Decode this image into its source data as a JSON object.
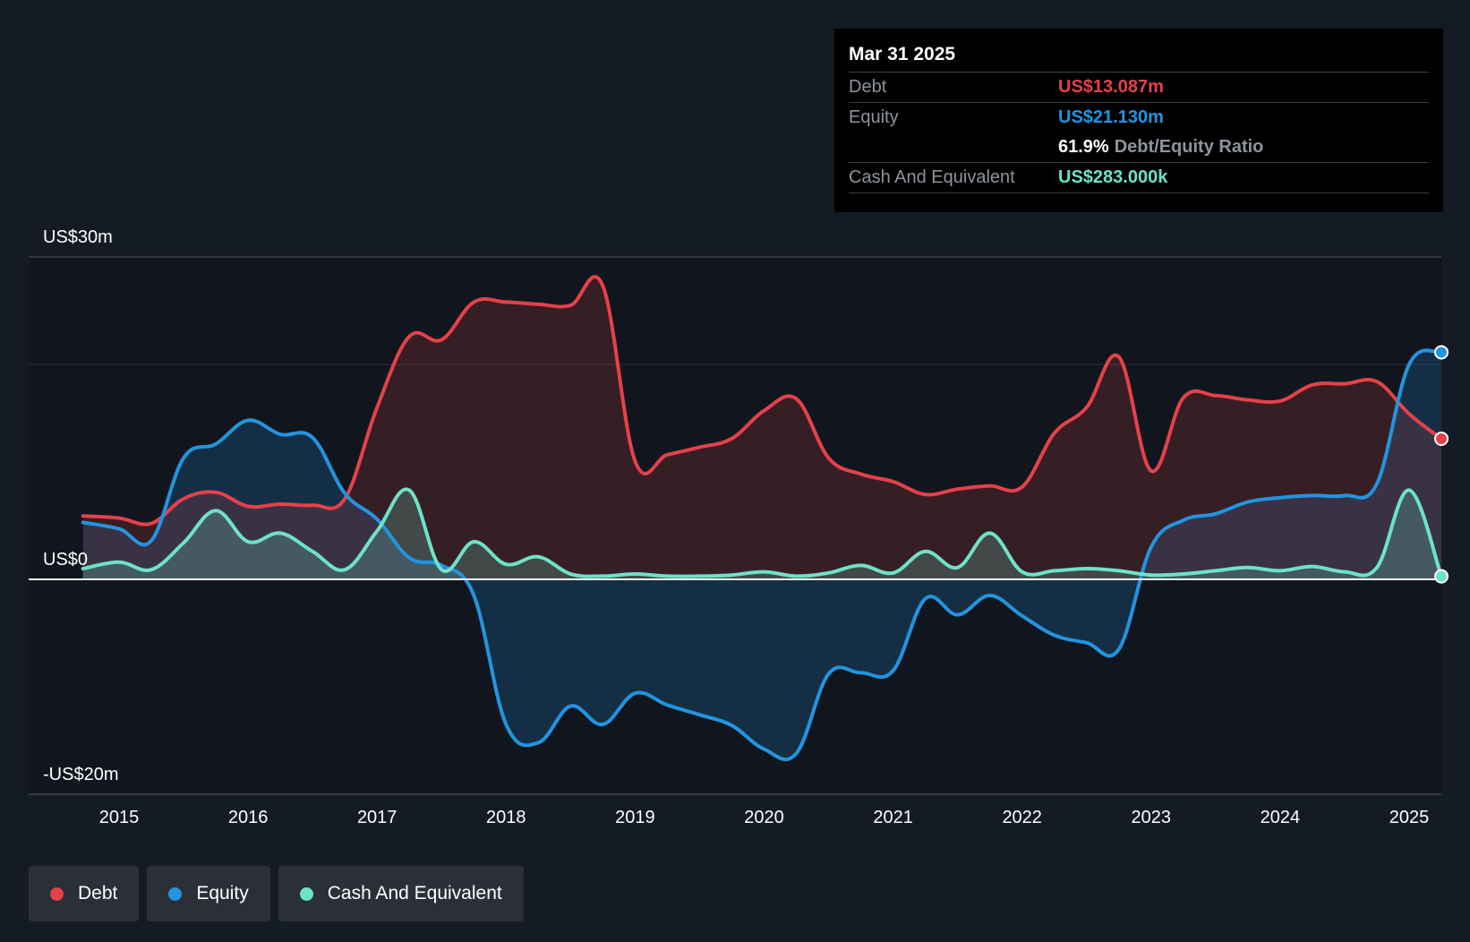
{
  "tooltip": {
    "date": "Mar 31 2025",
    "debt_label": "Debt",
    "debt_value": "US$13.087m",
    "equity_label": "Equity",
    "equity_value": "US$21.130m",
    "ratio_value": "61.9%",
    "ratio_label": "Debt/Equity Ratio",
    "cash_label": "Cash And Equivalent",
    "cash_value": "US$283.000k"
  },
  "legend": {
    "debt": "Debt",
    "equity": "Equity",
    "cash": "Cash And Equivalent"
  },
  "colors": {
    "background": "#151b24",
    "debt": "#e5414a",
    "equity": "#2394df",
    "cash": "#6ee2c9"
  },
  "chart_data": {
    "type": "area",
    "y_labels": [
      "US$30m",
      "US$0",
      "-US$20m"
    ],
    "x_tick_labels": [
      "2015",
      "2016",
      "2017",
      "2018",
      "2019",
      "2020",
      "2021",
      "2022",
      "2023",
      "2024",
      "2025"
    ],
    "x_ticks": [
      2015,
      2016,
      2017,
      2018,
      2019,
      2020,
      2021,
      2022,
      2023,
      2024,
      2025
    ],
    "xlim": [
      2014.72,
      2025.25
    ],
    "ylim": [
      -20,
      30
    ],
    "grid_y": [
      0,
      20,
      30
    ],
    "series": [
      {
        "name": "Debt",
        "color": "#e5414a",
        "points": [
          [
            2014.72,
            5.9
          ],
          [
            2015.0,
            5.7
          ],
          [
            2015.25,
            5.2
          ],
          [
            2015.5,
            7.5
          ],
          [
            2015.75,
            8.1
          ],
          [
            2016.0,
            6.8
          ],
          [
            2016.25,
            7.0
          ],
          [
            2016.5,
            6.9
          ],
          [
            2016.75,
            7.5
          ],
          [
            2017.0,
            16.0
          ],
          [
            2017.25,
            22.6
          ],
          [
            2017.5,
            22.3
          ],
          [
            2017.75,
            25.8
          ],
          [
            2018.0,
            25.8
          ],
          [
            2018.25,
            25.6
          ],
          [
            2018.5,
            25.5
          ],
          [
            2018.75,
            27.3
          ],
          [
            2019.0,
            11.0
          ],
          [
            2019.25,
            11.6
          ],
          [
            2019.5,
            12.3
          ],
          [
            2019.75,
            13.1
          ],
          [
            2020.0,
            15.7
          ],
          [
            2020.25,
            16.8
          ],
          [
            2020.5,
            11.3
          ],
          [
            2020.75,
            9.8
          ],
          [
            2021.0,
            9.1
          ],
          [
            2021.25,
            7.9
          ],
          [
            2021.5,
            8.4
          ],
          [
            2021.75,
            8.7
          ],
          [
            2022.0,
            8.6
          ],
          [
            2022.25,
            13.6
          ],
          [
            2022.5,
            16.0
          ],
          [
            2022.75,
            20.7
          ],
          [
            2023.0,
            10.1
          ],
          [
            2023.25,
            16.9
          ],
          [
            2023.5,
            17.1
          ],
          [
            2023.75,
            16.7
          ],
          [
            2024.0,
            16.6
          ],
          [
            2024.25,
            18.1
          ],
          [
            2024.5,
            18.2
          ],
          [
            2024.75,
            18.4
          ],
          [
            2025.0,
            15.4
          ],
          [
            2025.25,
            13.087
          ]
        ]
      },
      {
        "name": "Equity",
        "color": "#2394df",
        "points": [
          [
            2014.72,
            5.3
          ],
          [
            2015.0,
            4.7
          ],
          [
            2015.25,
            3.6
          ],
          [
            2015.5,
            11.3
          ],
          [
            2015.75,
            12.6
          ],
          [
            2016.0,
            14.8
          ],
          [
            2016.25,
            13.5
          ],
          [
            2016.5,
            13.2
          ],
          [
            2016.75,
            8.0
          ],
          [
            2017.0,
            5.6
          ],
          [
            2017.25,
            2.0
          ],
          [
            2017.5,
            1.3
          ],
          [
            2017.75,
            -1.5
          ],
          [
            2018.0,
            -13.5
          ],
          [
            2018.25,
            -15.2
          ],
          [
            2018.5,
            -11.8
          ],
          [
            2018.75,
            -13.5
          ],
          [
            2019.0,
            -10.6
          ],
          [
            2019.25,
            -11.7
          ],
          [
            2019.5,
            -12.6
          ],
          [
            2019.75,
            -13.6
          ],
          [
            2020.0,
            -15.8
          ],
          [
            2020.25,
            -16.2
          ],
          [
            2020.5,
            -8.8
          ],
          [
            2020.75,
            -8.7
          ],
          [
            2021.0,
            -8.5
          ],
          [
            2021.25,
            -1.8
          ],
          [
            2021.5,
            -3.3
          ],
          [
            2021.75,
            -1.5
          ],
          [
            2022.0,
            -3.4
          ],
          [
            2022.25,
            -5.2
          ],
          [
            2022.5,
            -5.9
          ],
          [
            2022.75,
            -6.5
          ],
          [
            2023.0,
            3.0
          ],
          [
            2023.25,
            5.5
          ],
          [
            2023.5,
            6.1
          ],
          [
            2023.75,
            7.2
          ],
          [
            2024.0,
            7.6
          ],
          [
            2024.25,
            7.8
          ],
          [
            2024.5,
            7.8
          ],
          [
            2024.75,
            8.9
          ],
          [
            2025.0,
            20.0
          ],
          [
            2025.25,
            21.13
          ]
        ]
      },
      {
        "name": "Cash And Equivalent",
        "color": "#6ee2c9",
        "points": [
          [
            2014.72,
            1.0
          ],
          [
            2015.0,
            1.6
          ],
          [
            2015.25,
            0.9
          ],
          [
            2015.5,
            3.4
          ],
          [
            2015.75,
            6.4
          ],
          [
            2016.0,
            3.5
          ],
          [
            2016.25,
            4.3
          ],
          [
            2016.5,
            2.6
          ],
          [
            2016.75,
            0.9
          ],
          [
            2017.0,
            4.5
          ],
          [
            2017.25,
            8.3
          ],
          [
            2017.5,
            0.9
          ],
          [
            2017.75,
            3.5
          ],
          [
            2018.0,
            1.4
          ],
          [
            2018.25,
            2.1
          ],
          [
            2018.5,
            0.5
          ],
          [
            2018.75,
            0.3
          ],
          [
            2019.0,
            0.5
          ],
          [
            2019.25,
            0.3
          ],
          [
            2019.5,
            0.3
          ],
          [
            2019.75,
            0.4
          ],
          [
            2020.0,
            0.7
          ],
          [
            2020.25,
            0.3
          ],
          [
            2020.5,
            0.6
          ],
          [
            2020.75,
            1.3
          ],
          [
            2021.0,
            0.6
          ],
          [
            2021.25,
            2.6
          ],
          [
            2021.5,
            1.1
          ],
          [
            2021.75,
            4.3
          ],
          [
            2022.0,
            0.7
          ],
          [
            2022.25,
            0.8
          ],
          [
            2022.5,
            1.0
          ],
          [
            2022.75,
            0.8
          ],
          [
            2023.0,
            0.4
          ],
          [
            2023.25,
            0.5
          ],
          [
            2023.5,
            0.8
          ],
          [
            2023.75,
            1.1
          ],
          [
            2024.0,
            0.8
          ],
          [
            2024.25,
            1.2
          ],
          [
            2024.5,
            0.7
          ],
          [
            2024.75,
            1.1
          ],
          [
            2025.0,
            8.3
          ],
          [
            2025.25,
            0.283
          ]
        ]
      }
    ]
  }
}
